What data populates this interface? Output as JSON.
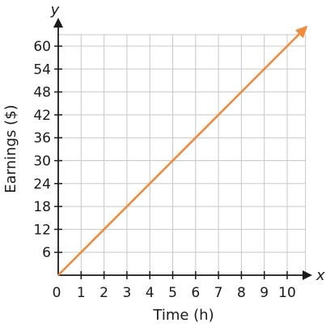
{
  "chart_data": {
    "type": "line",
    "xlabel": "Time (h)",
    "ylabel": "Earnings ($)",
    "x_axis_letter": "x",
    "y_axis_letter": "y",
    "origin_label": "0",
    "xlim": [
      0,
      10.8
    ],
    "ylim": [
      0,
      63
    ],
    "x_ticks": [
      1,
      2,
      3,
      4,
      5,
      6,
      7,
      8,
      9,
      10
    ],
    "y_ticks": [
      6,
      12,
      18,
      24,
      30,
      36,
      42,
      48,
      54,
      60
    ],
    "grid": true,
    "line_color": "#f08a3c",
    "series": [
      {
        "x": [
          0,
          10.8
        ],
        "y": [
          0,
          64.8
        ]
      }
    ],
    "arrow_end": true
  }
}
